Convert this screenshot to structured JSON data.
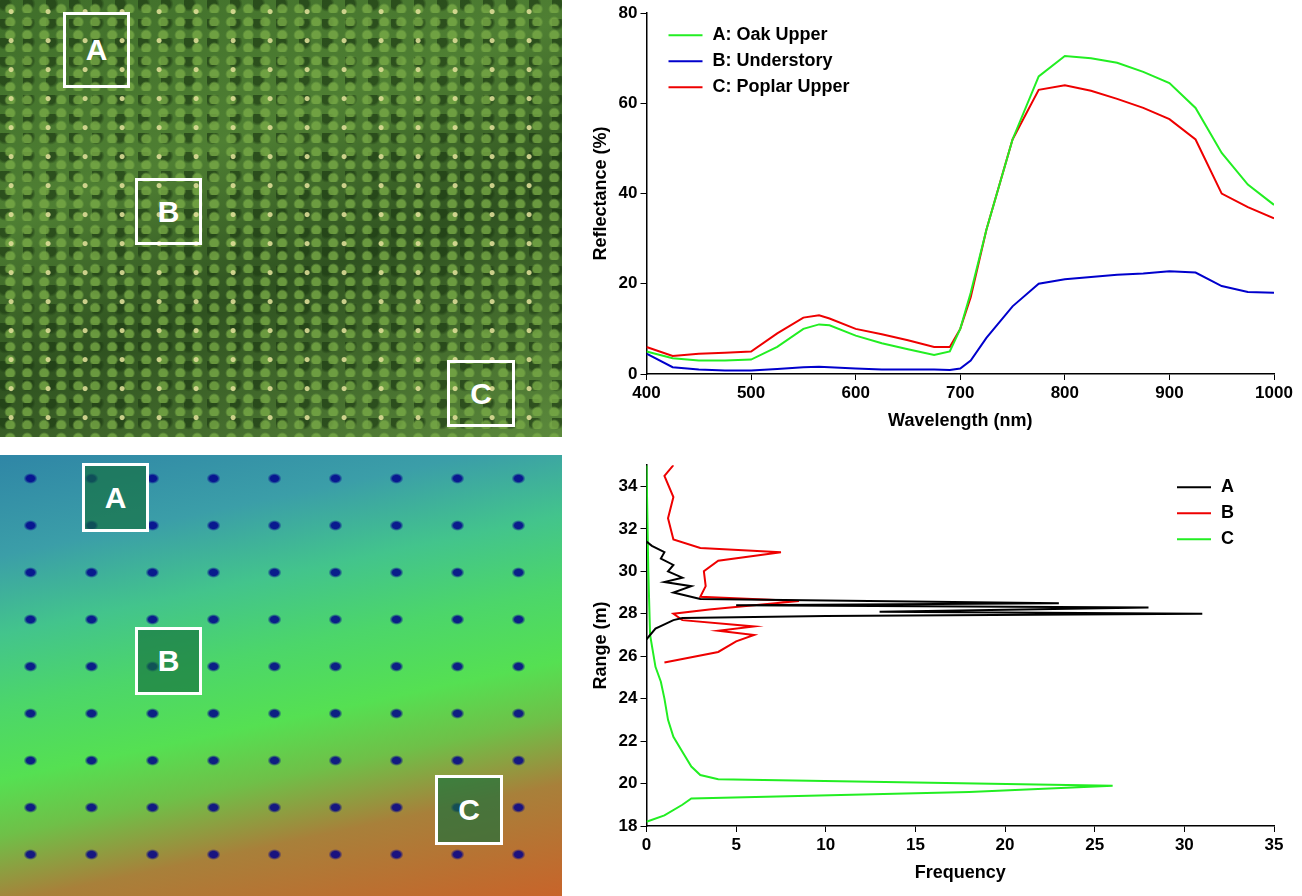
{
  "chart_data": [
    {
      "type": "line",
      "x_label": "Wavelength (nm)",
      "y_label": "Reflectance (%)",
      "x": [
        400,
        425,
        450,
        475,
        500,
        525,
        550,
        565,
        575,
        600,
        625,
        650,
        675,
        690,
        700,
        710,
        725,
        750,
        775,
        800,
        825,
        850,
        875,
        900,
        925,
        950,
        975,
        1000
      ],
      "series": [
        {
          "name": "A: Oak Upper",
          "color": "#22ee22",
          "values": [
            5,
            3.5,
            3,
            3,
            3.2,
            6,
            10,
            11,
            10.8,
            8.5,
            6.8,
            5.5,
            4.2,
            5,
            10,
            18,
            32,
            52,
            66,
            70.5,
            70,
            69,
            67,
            64.5,
            59,
            49,
            42,
            37.5
          ]
        },
        {
          "name": "B: Understory",
          "color": "#0000cc",
          "values": [
            4.5,
            1.5,
            1,
            0.8,
            0.8,
            1.1,
            1.5,
            1.6,
            1.5,
            1.2,
            1,
            1,
            1,
            0.9,
            1.2,
            3,
            8,
            15,
            20,
            21,
            21.5,
            22,
            22.3,
            22.8,
            22.5,
            19.5,
            18.2,
            18
          ]
        },
        {
          "name": "C: Poplar Upper",
          "color": "#ee0000",
          "values": [
            6,
            4,
            4.5,
            4.7,
            5,
            9,
            12.5,
            13,
            12.3,
            10,
            8.8,
            7.5,
            6,
            6,
            10,
            17,
            32,
            52,
            63,
            64,
            62.8,
            61,
            59,
            56.5,
            52,
            40,
            37,
            34.5
          ]
        }
      ],
      "xlim": [
        400,
        1000
      ],
      "xticks": [
        400,
        500,
        600,
        700,
        800,
        900,
        1000
      ],
      "ylim": [
        0,
        80
      ],
      "yticks": [
        0,
        20,
        40,
        60,
        80
      ],
      "grid": false,
      "legend": "upper left"
    },
    {
      "type": "line",
      "x_label": "Frequency",
      "y_label": "Range (m)",
      "series": [
        {
          "name": "A",
          "color": "#000000",
          "x": [
            0,
            0.5,
            1,
            1.5,
            2,
            10,
            31,
            13,
            28,
            5,
            23,
            3,
            1.5,
            2.5,
            1,
            2,
            1.2,
            1.5,
            0.8,
            1,
            0.3,
            0
          ],
          "values": [
            26.8,
            27.3,
            27.5,
            27.7,
            27.8,
            27.9,
            28,
            28.1,
            28.3,
            28.4,
            28.5,
            28.7,
            29,
            29.3,
            29.5,
            29.7,
            30,
            30.3,
            30.6,
            30.9,
            31.2,
            31.4
          ]
        },
        {
          "name": "B",
          "color": "#ee0000",
          "x": [
            1,
            4,
            5,
            6,
            4,
            6,
            2,
            1.5,
            3.5,
            8.5,
            3,
            3.3,
            3.2,
            4,
            7.5,
            3,
            1.5,
            1.2,
            1.5,
            1,
            1.5
          ],
          "values": [
            25.7,
            26.2,
            26.7,
            27,
            27.2,
            27.4,
            27.7,
            28,
            28.2,
            28.6,
            28.8,
            29.3,
            30,
            30.5,
            30.9,
            31.1,
            31.5,
            32.5,
            33.5,
            34.5,
            35
          ]
        },
        {
          "name": "C",
          "color": "#22ee22",
          "x": [
            0,
            1,
            2,
            2.5,
            18,
            26,
            4,
            3,
            2.5,
            2,
            1.5,
            1.2,
            1,
            0.8,
            0.5,
            0.2,
            0.1,
            0
          ],
          "values": [
            18.2,
            18.5,
            19,
            19.3,
            19.6,
            19.9,
            20.2,
            20.4,
            20.8,
            21.5,
            22.2,
            23,
            24,
            24.8,
            25.5,
            27,
            30,
            35
          ]
        }
      ],
      "xlim": [
        0,
        35
      ],
      "xticks": [
        0,
        5,
        10,
        15,
        20,
        25,
        30,
        35
      ],
      "ylim": [
        18,
        35
      ],
      "yticks": [
        18,
        20,
        22,
        24,
        26,
        28,
        30,
        32,
        34
      ],
      "grid": false,
      "legend": "upper right"
    }
  ],
  "images": [
    {
      "boxes": [
        "A",
        "B",
        "C"
      ]
    },
    {
      "boxes": [
        "A",
        "B",
        "C"
      ]
    }
  ]
}
